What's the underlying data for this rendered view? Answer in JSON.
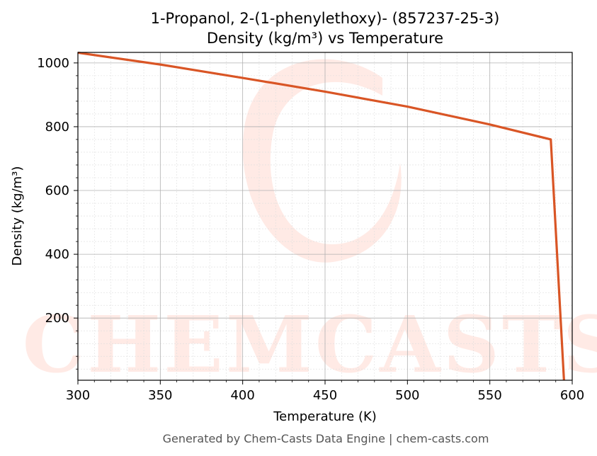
{
  "chart_data": {
    "type": "line",
    "title_line1": "1-Propanol, 2-(1-phenylethoxy)- (857237-25-3)",
    "title_line2": "Density (kg/m³) vs Temperature",
    "xlabel": "Temperature (K)",
    "ylabel": "Density (kg/m³)",
    "xlim": [
      300,
      600
    ],
    "ylim": [
      5,
      1033
    ],
    "x_ticks": [
      300,
      350,
      400,
      450,
      500,
      550,
      600
    ],
    "y_ticks": [
      200,
      400,
      600,
      800,
      1000
    ],
    "grid": true,
    "series": [
      {
        "color": "#d95525",
        "x": [
          300,
          350,
          400,
          450,
          500,
          550,
          587,
          595
        ],
        "y": [
          1032,
          995,
          953,
          910,
          863,
          807,
          760,
          5
        ]
      }
    ],
    "watermark": "CHEMCASTS",
    "footer": "Generated by Chem-Casts Data Engine | chem-casts.com"
  }
}
